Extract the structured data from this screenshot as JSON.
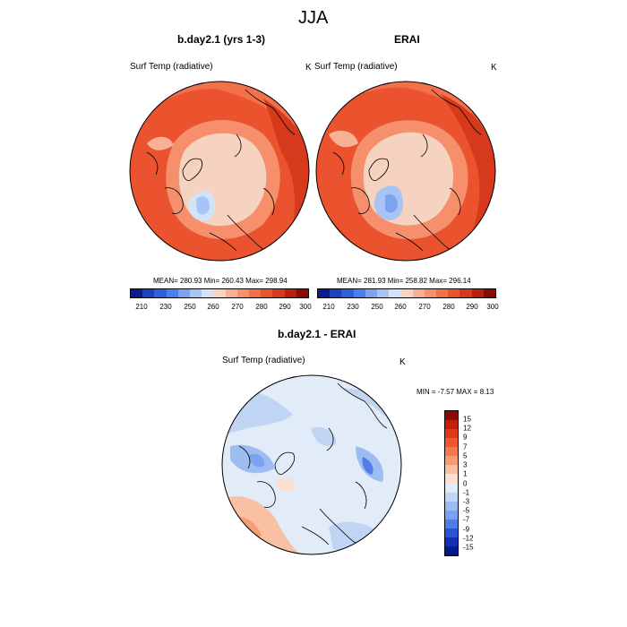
{
  "figure": {
    "title": "JJA"
  },
  "panels": {
    "model": {
      "title": "b.day2.1 (yrs 1-3)",
      "left_label": "Surf Temp (radiative)",
      "unit": "K",
      "stats": "MEAN= 280.93  Min= 260.43  Max= 298.94"
    },
    "obs": {
      "title": "ERAI",
      "left_label": "Surf Temp (radiative)",
      "unit": "K",
      "stats": "MEAN= 281.93  Min= 258.82  Max= 296.14"
    },
    "diff": {
      "title": "b.day2.1 - ERAI",
      "left_label": "Surf Temp (radiative)",
      "unit": "K",
      "stats": "MIN =  -7.57 MAX =   8.13"
    }
  },
  "colorbar_abs": {
    "tick_labels": [
      "210",
      "230",
      "250",
      "260",
      "270",
      "280",
      "290",
      "300"
    ],
    "colors": [
      "#0d1a8c",
      "#1e3fbf",
      "#2e5fe0",
      "#4a7ff0",
      "#7aa3f0",
      "#a8c4f5",
      "#d2e2f8",
      "#f6d2c0",
      "#f5b294",
      "#f58f6c",
      "#f2704a",
      "#ea532e",
      "#d6391b",
      "#b8200d",
      "#8c0a04"
    ]
  },
  "colorbar_diff": {
    "tick_labels": [
      "15",
      "12",
      "9",
      "7",
      "5",
      "3",
      "1",
      "0",
      "-1",
      "-3",
      "-5",
      "-7",
      "-9",
      "-12",
      "-15"
    ],
    "colors": [
      "#8c0a04",
      "#c41e0a",
      "#e03a16",
      "#f0572d",
      "#f47a4c",
      "#f79d74",
      "#f9c0a4",
      "#fbe0d2",
      "#e1ecf8",
      "#c0d4f4",
      "#9cbcf2",
      "#7aa2ee",
      "#4f7ee6",
      "#2b55d6",
      "#1030b8",
      "#001a8c"
    ]
  }
}
